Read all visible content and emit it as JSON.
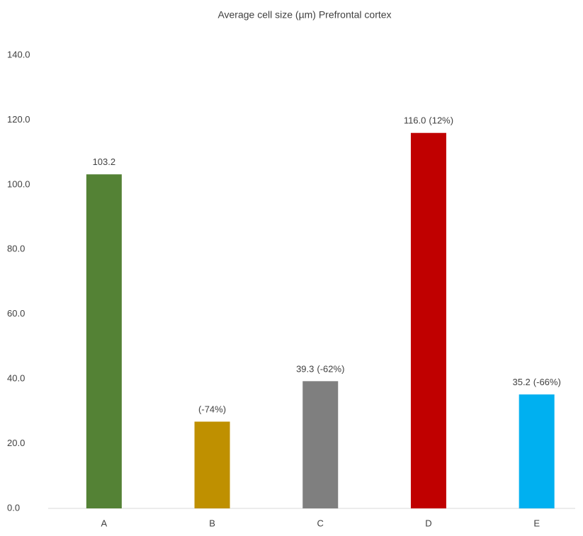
{
  "chart_data": {
    "type": "bar",
    "title": "Average cell size (µm) Prefrontal cortex",
    "categories": [
      "A",
      "B",
      "C",
      "D",
      "E"
    ],
    "values": [
      103.2,
      26.8,
      39.3,
      116.0,
      35.2
    ],
    "value_labels": [
      "103.2",
      null,
      "39.3",
      "116.0",
      "35.2"
    ],
    "change_labels": [
      null,
      "(-74%)",
      "(-62%)",
      "(12%)",
      "(-66%)"
    ],
    "colors": [
      "#548235",
      "#bf9000",
      "#7f7f7f",
      "#c00000",
      "#00b0f0"
    ],
    "ylim": [
      0,
      140
    ],
    "yticks": [
      {
        "value": 0,
        "label": "0.0"
      },
      {
        "value": 20,
        "label": "20.0"
      },
      {
        "value": 40,
        "label": "40.0"
      },
      {
        "value": 60,
        "label": "60.0"
      },
      {
        "value": 80,
        "label": "80.0"
      },
      {
        "value": 100,
        "label": "100.0"
      },
      {
        "value": 120,
        "label": "120.0"
      },
      {
        "value": 140,
        "label": "140.0"
      }
    ],
    "grid": false
  }
}
